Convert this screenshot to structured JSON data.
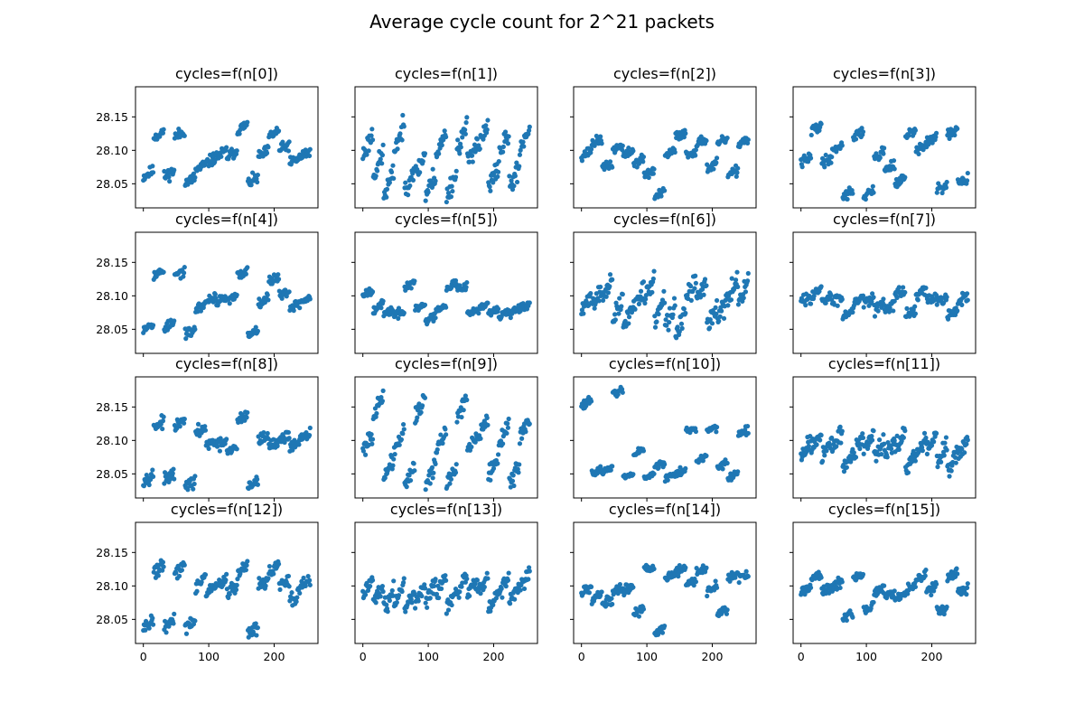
{
  "figure": {
    "title": "Average cycle count for 2^21 packets"
  },
  "chart_data": {
    "type": "scatter",
    "layout": {
      "rows": 4,
      "cols": 4,
      "sharex": true,
      "sharey": true
    },
    "xlim": [
      -12,
      267
    ],
    "ylim": [
      28.014,
      28.195
    ],
    "xticks": [
      0,
      100,
      200
    ],
    "xtick_labels": [
      "0",
      "100",
      "200"
    ],
    "yticks": [
      28.05,
      28.1,
      28.15
    ],
    "ytick_labels": [
      "28.05",
      "28.10",
      "28.15"
    ],
    "marker_color": "#1f77b4",
    "panels": [
      {
        "title": "cycles=f(n[0])",
        "seed": 11,
        "period": 32,
        "base": [
          28.07,
          28.12,
          28.07,
          28.12,
          28.06,
          28.07,
          28.09,
          28.09,
          28.1,
          28.13,
          28.06,
          28.09,
          28.13,
          28.1,
          28.09,
          28.09
        ],
        "amp": 0.012
      },
      {
        "title": "cycles=f(n[1])",
        "seed": 23,
        "period": 16,
        "base": [
          28.11,
          28.08,
          28.05,
          28.12,
          28.06,
          28.08,
          28.05,
          28.11,
          28.05,
          28.12,
          28.1,
          28.12,
          28.06,
          28.11,
          28.06,
          28.12
        ],
        "amp": 0.022
      },
      {
        "title": "cycles=f(n[2])",
        "seed": 37,
        "period": 32,
        "base": [
          28.1,
          28.11,
          28.08,
          28.1,
          28.1,
          28.08,
          28.07,
          28.03,
          28.1,
          28.12,
          28.1,
          28.11,
          28.08,
          28.11,
          28.07,
          28.11
        ],
        "amp": 0.01
      },
      {
        "title": "cycles=f(n[3])",
        "seed": 41,
        "period": 32,
        "base": [
          28.09,
          28.13,
          28.09,
          28.1,
          28.04,
          28.12,
          28.04,
          28.09,
          28.08,
          28.05,
          28.13,
          28.1,
          28.12,
          28.04,
          28.13,
          28.05
        ],
        "amp": 0.011
      },
      {
        "title": "cycles=f(n[4])",
        "seed": 53,
        "period": 32,
        "base": [
          28.06,
          28.13,
          28.06,
          28.13,
          28.05,
          28.08,
          28.1,
          28.09,
          28.1,
          28.13,
          28.05,
          28.09,
          28.13,
          28.1,
          28.09,
          28.09
        ],
        "amp": 0.01
      },
      {
        "title": "cycles=f(n[5])",
        "seed": 67,
        "period": 32,
        "base": [
          28.11,
          28.08,
          28.08,
          28.07,
          28.12,
          28.08,
          28.07,
          28.08,
          28.12,
          28.11,
          28.08,
          28.08,
          28.08,
          28.07,
          28.08,
          28.08
        ],
        "amp": 0.009
      },
      {
        "title": "cycles=f(n[6])",
        "seed": 71,
        "period": 16,
        "base": [
          28.09,
          28.1,
          28.11,
          28.08,
          28.07,
          28.1,
          28.11,
          28.08,
          28.07,
          28.06,
          28.11,
          28.11,
          28.07,
          28.08,
          28.11,
          28.11
        ],
        "amp": 0.02
      },
      {
        "title": "cycles=f(n[7])",
        "seed": 83,
        "period": 32,
        "base": [
          28.1,
          28.1,
          28.1,
          28.09,
          28.08,
          28.09,
          28.1,
          28.08,
          28.09,
          28.1,
          28.08,
          28.1,
          28.1,
          28.09,
          28.08,
          28.09
        ],
        "amp": 0.012
      },
      {
        "title": "cycles=f(n[8])",
        "seed": 97,
        "period": 32,
        "base": [
          28.05,
          28.12,
          28.05,
          28.12,
          28.04,
          28.11,
          28.1,
          28.09,
          28.09,
          28.13,
          28.04,
          28.1,
          28.1,
          28.1,
          28.1,
          28.1
        ],
        "amp": 0.012
      },
      {
        "title": "cycles=f(n[9])",
        "seed": 101,
        "period": 16,
        "base": [
          28.1,
          28.15,
          28.06,
          28.1,
          28.05,
          28.15,
          28.05,
          28.1,
          28.05,
          28.15,
          28.1,
          28.12,
          28.06,
          28.11,
          28.05,
          28.12
        ],
        "amp": 0.018
      },
      {
        "title": "cycles=f(n[10])",
        "seed": 113,
        "period": 32,
        "base": [
          28.16,
          28.05,
          28.06,
          28.17,
          28.05,
          28.08,
          28.05,
          28.06,
          28.05,
          28.05,
          28.12,
          28.07,
          28.12,
          28.06,
          28.05,
          28.11
        ],
        "amp": 0.008
      },
      {
        "title": "cycles=f(n[11])",
        "seed": 127,
        "period": 16,
        "base": [
          28.09,
          28.1,
          28.09,
          28.1,
          28.07,
          28.09,
          28.1,
          28.09,
          28.09,
          28.1,
          28.07,
          28.09,
          28.1,
          28.08,
          28.07,
          28.09
        ],
        "amp": 0.018
      },
      {
        "title": "cycles=f(n[12])",
        "seed": 131,
        "period": 32,
        "base": [
          28.05,
          28.12,
          28.05,
          28.12,
          28.05,
          28.1,
          28.1,
          28.1,
          28.1,
          28.12,
          28.04,
          28.1,
          28.13,
          28.1,
          28.09,
          28.1
        ],
        "amp": 0.014
      },
      {
        "title": "cycles=f(n[13])",
        "seed": 149,
        "period": 16,
        "base": [
          28.1,
          28.09,
          28.08,
          28.09,
          28.08,
          28.09,
          28.09,
          28.1,
          28.08,
          28.1,
          28.1,
          28.1,
          28.08,
          28.1,
          28.09,
          28.11
        ],
        "amp": 0.016
      },
      {
        "title": "cycles=f(n[14])",
        "seed": 157,
        "period": 32,
        "base": [
          28.1,
          28.08,
          28.08,
          28.09,
          28.1,
          28.06,
          28.13,
          28.03,
          28.12,
          28.12,
          28.11,
          28.12,
          28.1,
          28.06,
          28.12,
          28.11
        ],
        "amp": 0.01
      },
      {
        "title": "cycles=f(n[15])",
        "seed": 163,
        "period": 32,
        "base": [
          28.1,
          28.11,
          28.1,
          28.1,
          28.06,
          28.11,
          28.07,
          28.09,
          28.09,
          28.08,
          28.1,
          28.11,
          28.1,
          28.06,
          28.12,
          28.09
        ],
        "amp": 0.01
      }
    ]
  }
}
